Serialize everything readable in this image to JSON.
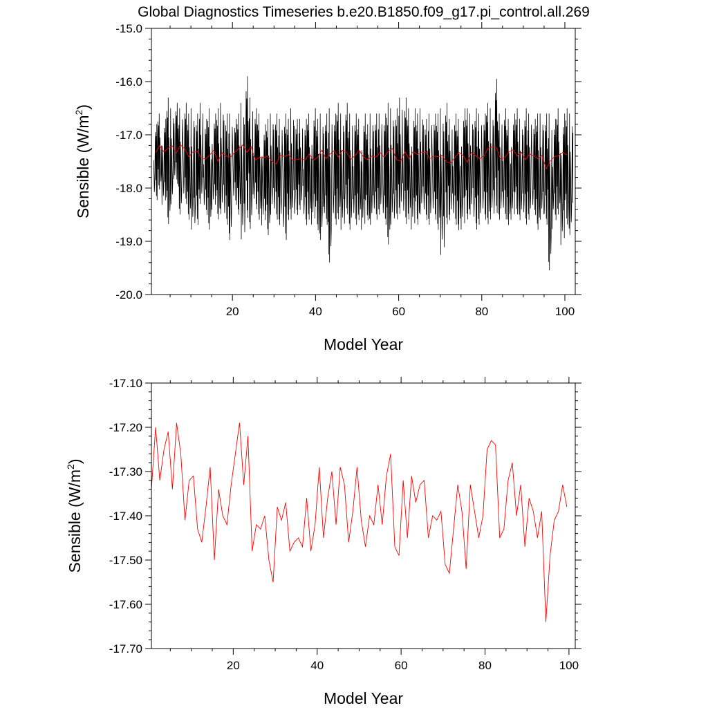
{
  "title": "Global Diagnostics Timeseries b.e20.B1850.f09_g17.pi_control.all.269",
  "chart_data": [
    {
      "type": "line",
      "xlabel": "Model Year",
      "ylabel_main": "Sensible (W/m",
      "ylabel_sup": "2",
      "ylabel_end": ")",
      "xlim": [
        0.5,
        102.5
      ],
      "ylim": [
        -20.0,
        -15.0
      ],
      "xticks": [
        20,
        40,
        60,
        80,
        100
      ],
      "xtick_labels": [
        "20",
        "40",
        "60",
        "80",
        "100"
      ],
      "yticks": [
        -20.0,
        -19.0,
        -18.0,
        -17.0,
        -16.0,
        -15.0
      ],
      "ytick_labels": [
        "-20.0",
        "-19.0",
        "-18.0",
        "-17.0",
        "-16.0",
        "-15.0"
      ],
      "series": [
        {
          "kind": "monthly",
          "color": "#000000",
          "x_start": 1.0417,
          "x_step": 0.08333,
          "annual_max": [
            -16.8,
            -16.6,
            -16.7,
            -16.3,
            -16.5,
            -16.4,
            -16.5,
            -16.4,
            -16.6,
            -16.5,
            -16.6,
            -16.4,
            -16.7,
            -16.5,
            -16.6,
            -16.5,
            -16.4,
            -16.6,
            -16.6,
            -16.7,
            -16.6,
            -16.4,
            -15.9,
            -16.3,
            -16.5,
            -16.6,
            -16.8,
            -16.7,
            -16.6,
            -16.6,
            -16.7,
            -16.6,
            -16.7,
            -16.5,
            -16.7,
            -16.7,
            -16.7,
            -16.6,
            -16.5,
            -16.7,
            -16.6,
            -16.6,
            -16.5,
            -16.6,
            -16.4,
            -16.6,
            -16.4,
            -16.6,
            -16.6,
            -16.7,
            -16.6,
            -16.8,
            -16.6,
            -16.6,
            -16.6,
            -16.6,
            -16.4,
            -16.5,
            -16.5,
            -16.3,
            -16.3,
            -16.5,
            -16.5,
            -16.6,
            -16.5,
            -16.7,
            -16.6,
            -16.6,
            -16.6,
            -16.5,
            -16.4,
            -16.7,
            -16.6,
            -16.7,
            -16.5,
            -16.5,
            -16.6,
            -16.5,
            -16.6,
            -16.6,
            -16.4,
            -16.5,
            -15.95,
            -16.6,
            -16.5,
            -16.7,
            -16.6,
            -16.5,
            -16.7,
            -16.5,
            -16.6,
            -16.7,
            -16.6,
            -16.6,
            -16.6,
            -16.6,
            -16.7,
            -16.5,
            -16.6,
            -16.5,
            -16.6
          ],
          "annual_min": [
            -18.3,
            -18.1,
            -18.4,
            -18.8,
            -18.4,
            -18.0,
            -18.6,
            -18.4,
            -18.7,
            -18.9,
            -18.8,
            -18.4,
            -18.6,
            -18.9,
            -18.5,
            -18.7,
            -18.6,
            -18.8,
            -19.1,
            -18.4,
            -18.6,
            -19.1,
            -18.7,
            -18.9,
            -18.5,
            -18.7,
            -18.8,
            -19.0,
            -18.6,
            -18.7,
            -18.8,
            -19.1,
            -18.7,
            -18.7,
            -18.6,
            -18.5,
            -18.8,
            -18.7,
            -18.8,
            -18.9,
            -19.1,
            -18.8,
            -19.55,
            -18.8,
            -18.7,
            -18.9,
            -18.6,
            -18.9,
            -18.8,
            -18.7,
            -18.9,
            -18.7,
            -18.8,
            -18.7,
            -18.6,
            -18.8,
            -19.2,
            -18.8,
            -18.7,
            -18.6,
            -18.8,
            -18.7,
            -18.9,
            -18.8,
            -18.6,
            -18.7,
            -18.8,
            -18.7,
            -18.9,
            -19.4,
            -18.8,
            -18.7,
            -18.8,
            -18.9,
            -18.9,
            -18.7,
            -18.6,
            -18.9,
            -18.8,
            -18.7,
            -18.8,
            -18.7,
            -18.6,
            -18.7,
            -18.7,
            -18.8,
            -18.7,
            -18.6,
            -18.7,
            -18.8,
            -18.7,
            -18.6,
            -18.9,
            -18.7,
            -18.8,
            -19.7,
            -18.7,
            -18.6,
            -19.2,
            -18.8,
            -19.0
          ]
        },
        {
          "kind": "annual",
          "color": "#ff0000",
          "x_start": 1.5,
          "x_step": 1.0,
          "values": [
            -17.34,
            -17.2,
            -17.32,
            -17.25,
            -17.21,
            -17.34,
            -17.19,
            -17.26,
            -17.41,
            -17.32,
            -17.31,
            -17.43,
            -17.46,
            -17.38,
            -17.29,
            -17.5,
            -17.34,
            -17.4,
            -17.42,
            -17.33,
            -17.26,
            -17.19,
            -17.33,
            -17.22,
            -17.48,
            -17.42,
            -17.43,
            -17.4,
            -17.5,
            -17.55,
            -17.38,
            -17.41,
            -17.37,
            -17.48,
            -17.46,
            -17.45,
            -17.47,
            -17.36,
            -17.48,
            -17.42,
            -17.29,
            -17.45,
            -17.36,
            -17.3,
            -17.42,
            -17.29,
            -17.33,
            -17.46,
            -17.39,
            -17.29,
            -17.41,
            -17.47,
            -17.4,
            -17.42,
            -17.33,
            -17.42,
            -17.31,
            -17.26,
            -17.47,
            -17.49,
            -17.32,
            -17.45,
            -17.31,
            -17.37,
            -17.33,
            -17.32,
            -17.45,
            -17.4,
            -17.41,
            -17.39,
            -17.51,
            -17.53,
            -17.43,
            -17.33,
            -17.39,
            -17.52,
            -17.33,
            -17.39,
            -17.45,
            -17.4,
            -17.25,
            -17.23,
            -17.24,
            -17.45,
            -17.43,
            -17.32,
            -17.28,
            -17.4,
            -17.33,
            -17.47,
            -17.36,
            -17.39,
            -17.45,
            -17.39,
            -17.64,
            -17.49,
            -17.41,
            -17.39,
            -17.33,
            -17.38
          ]
        }
      ]
    },
    {
      "type": "line",
      "xlabel": "Model Year",
      "ylabel_main": "Sensible (W/m",
      "ylabel_sup": "2",
      "ylabel_end": ")",
      "xlim": [
        0.5,
        101.5
      ],
      "ylim": [
        -17.7,
        -17.1
      ],
      "xticks": [
        20,
        40,
        60,
        80,
        100
      ],
      "xtick_labels": [
        "20",
        "40",
        "60",
        "80",
        "100"
      ],
      "yticks": [
        -17.7,
        -17.6,
        -17.5,
        -17.4,
        -17.3,
        -17.2,
        -17.1
      ],
      "ytick_labels": [
        "-17.70",
        "-17.60",
        "-17.50",
        "-17.40",
        "-17.30",
        "-17.20",
        "-17.10"
      ],
      "series": [
        {
          "kind": "annual",
          "color": "#ff0000",
          "x_start": 0.5,
          "x_step": 1.0,
          "values": [
            -17.34,
            -17.2,
            -17.32,
            -17.25,
            -17.21,
            -17.34,
            -17.19,
            -17.26,
            -17.41,
            -17.32,
            -17.31,
            -17.43,
            -17.46,
            -17.38,
            -17.29,
            -17.5,
            -17.34,
            -17.4,
            -17.42,
            -17.33,
            -17.26,
            -17.19,
            -17.33,
            -17.22,
            -17.48,
            -17.42,
            -17.43,
            -17.4,
            -17.5,
            -17.55,
            -17.38,
            -17.41,
            -17.37,
            -17.48,
            -17.46,
            -17.45,
            -17.47,
            -17.36,
            -17.48,
            -17.42,
            -17.29,
            -17.45,
            -17.36,
            -17.3,
            -17.42,
            -17.29,
            -17.33,
            -17.46,
            -17.39,
            -17.29,
            -17.41,
            -17.47,
            -17.4,
            -17.42,
            -17.33,
            -17.42,
            -17.31,
            -17.26,
            -17.47,
            -17.49,
            -17.32,
            -17.45,
            -17.31,
            -17.37,
            -17.33,
            -17.32,
            -17.45,
            -17.4,
            -17.41,
            -17.39,
            -17.51,
            -17.53,
            -17.43,
            -17.33,
            -17.39,
            -17.52,
            -17.33,
            -17.39,
            -17.45,
            -17.4,
            -17.25,
            -17.23,
            -17.24,
            -17.45,
            -17.43,
            -17.32,
            -17.28,
            -17.4,
            -17.33,
            -17.47,
            -17.36,
            -17.39,
            -17.45,
            -17.39,
            -17.64,
            -17.49,
            -17.41,
            -17.39,
            -17.33,
            -17.38
          ]
        }
      ]
    }
  ]
}
